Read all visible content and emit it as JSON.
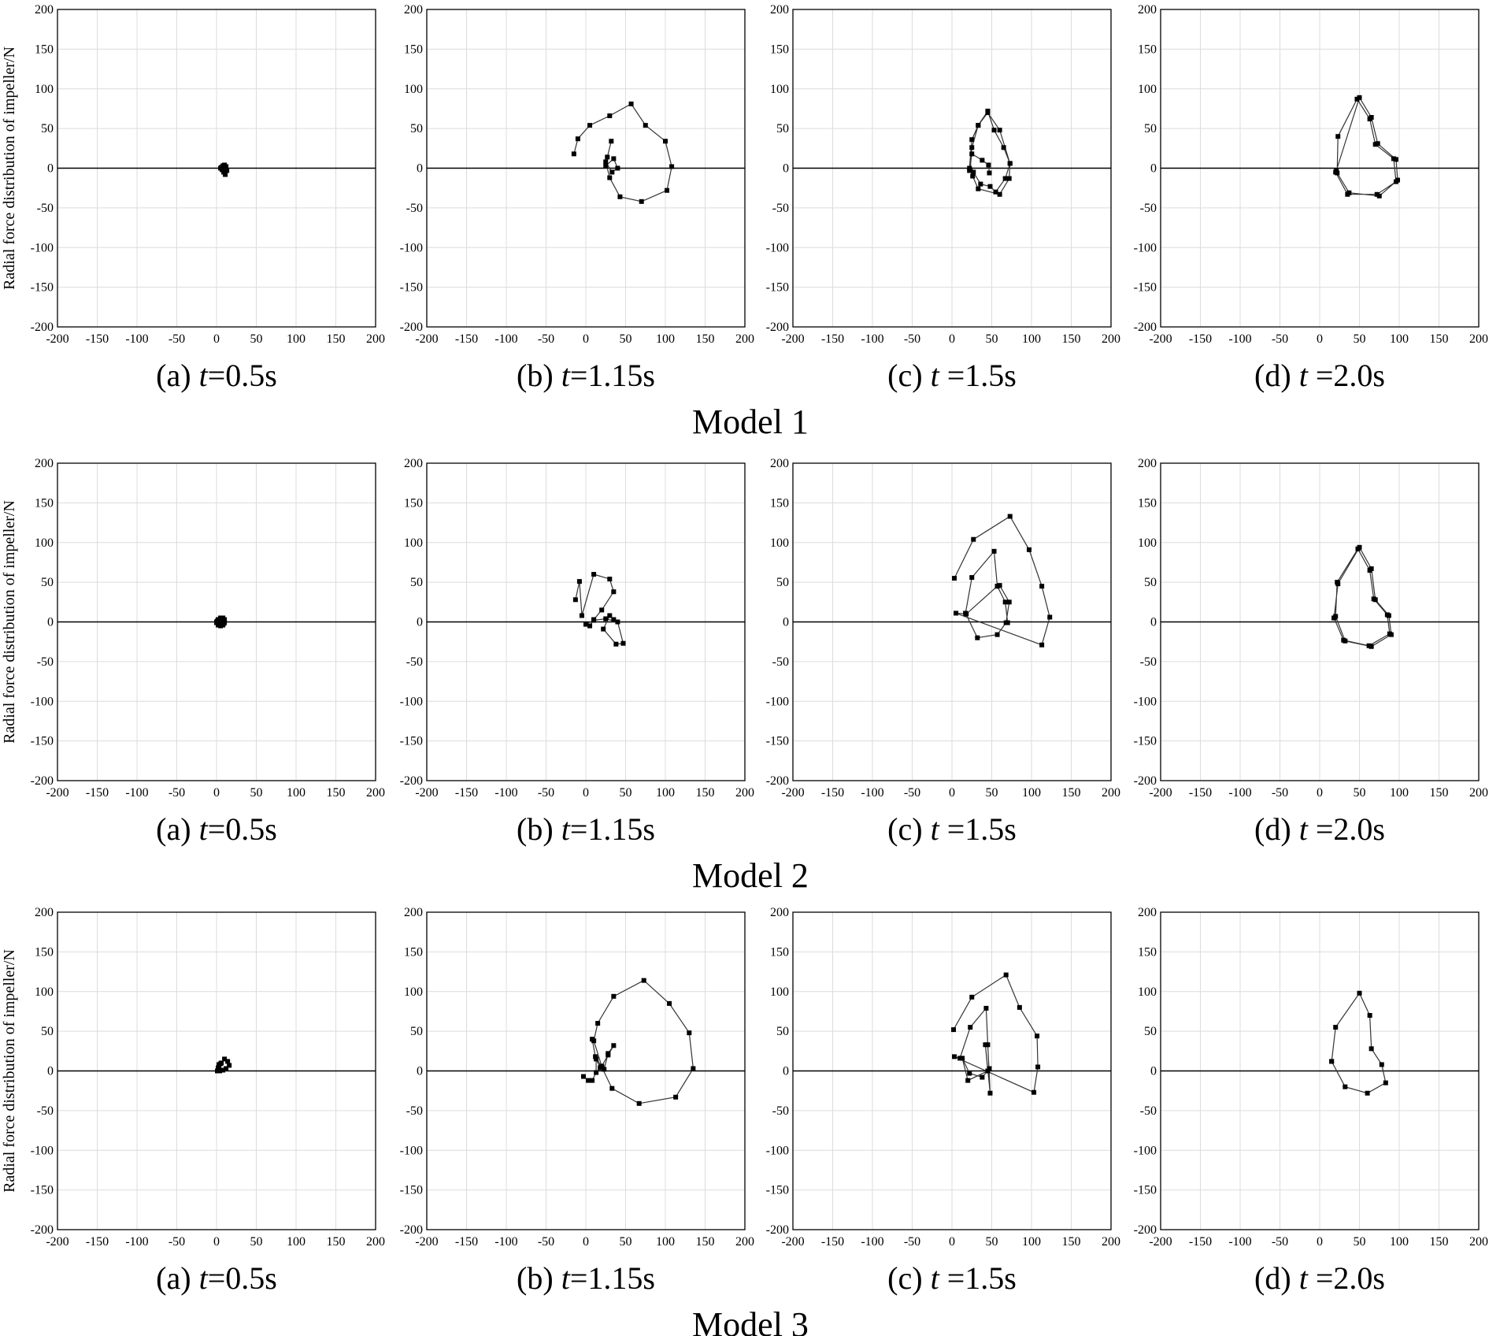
{
  "figure": {
    "ylabel": "Radial force distribution of impeller/N",
    "xlim": [
      -200,
      200
    ],
    "ylim": [
      -200,
      200
    ],
    "ticks": [
      -200,
      -150,
      -100,
      -50,
      0,
      50,
      100,
      150,
      200
    ],
    "grid": true,
    "rows": [
      {
        "label": "Model 1"
      },
      {
        "label": "Model 2"
      },
      {
        "label": "Model 3"
      }
    ],
    "captions": [
      {
        "pre": "(a) ",
        "t": "t",
        "post": "=0.5s"
      },
      {
        "pre": "(b) ",
        "t": "t",
        "post": "=1.15s"
      },
      {
        "pre": "(c) ",
        "t": "t",
        "post": " =1.5s"
      },
      {
        "pre": "(d) ",
        "t": "t",
        "post": " =2.0s"
      }
    ]
  },
  "chart_data": [
    {
      "type": "line",
      "model": "Model 1",
      "panel": "(a)",
      "time": "0.5s",
      "x": [
        5,
        8,
        10,
        12,
        13,
        11,
        9,
        7,
        6
      ],
      "y": [
        0,
        3,
        4,
        2,
        -3,
        -8,
        -5,
        -2,
        1
      ]
    },
    {
      "type": "line",
      "model": "Model 1",
      "panel": "(b)",
      "time": "1.15s",
      "x": [
        -15,
        -10,
        5,
        30,
        57,
        75,
        100,
        108,
        102,
        70,
        43,
        30,
        25,
        33,
        40,
        35,
        25,
        27,
        32
      ],
      "y": [
        18,
        37,
        54,
        66,
        81,
        54,
        34,
        2,
        -28,
        -42,
        -36,
        -12,
        8,
        -5,
        0,
        12,
        3,
        14,
        34
      ]
    },
    {
      "type": "line",
      "model": "Model 1",
      "panel": "(c)",
      "time": "1.5s",
      "x": [
        22,
        25,
        33,
        45,
        53,
        65,
        73,
        72,
        60,
        33,
        26,
        23,
        25,
        33,
        45,
        60,
        73,
        67,
        55,
        48,
        36,
        27,
        22,
        25,
        38,
        46,
        47
      ],
      "y": [
        0,
        36,
        54,
        72,
        48,
        26,
        6,
        -13,
        -33,
        -26,
        -10,
        -2,
        26,
        54,
        70,
        48,
        6,
        -13,
        -30,
        -23,
        -20,
        -5,
        -3,
        18,
        10,
        4,
        -6
      ]
    },
    {
      "type": "line",
      "model": "Model 1",
      "panel": "(d)",
      "time": "2.0s",
      "x": [
        21,
        50,
        65,
        73,
        96,
        98,
        75,
        37,
        22,
        23,
        47,
        63,
        70,
        93,
        96,
        72,
        35,
        20
      ],
      "y": [
        -3,
        89,
        64,
        31,
        11,
        -15,
        -35,
        -31,
        -6,
        40,
        87,
        62,
        30,
        12,
        -17,
        -33,
        -33,
        -5
      ]
    },
    {
      "type": "line",
      "model": "Model 2",
      "panel": "(a)",
      "time": "0.5s",
      "x": [
        0,
        2,
        5,
        8,
        10,
        10,
        8,
        5,
        2,
        0,
        1,
        4,
        7,
        9,
        9,
        7,
        4,
        2
      ],
      "y": [
        0,
        3,
        5,
        5,
        3,
        -1,
        -4,
        -5,
        -4,
        -1,
        1,
        3,
        4,
        2,
        -2,
        -4,
        -3,
        -1
      ]
    },
    {
      "type": "line",
      "model": "Model 2",
      "panel": "(b)",
      "time": "1.15s",
      "x": [
        -13,
        -8,
        -5,
        10,
        30,
        35,
        20,
        10,
        5,
        0,
        10,
        25,
        40,
        47,
        38,
        22,
        30,
        35
      ],
      "y": [
        28,
        51,
        8,
        60,
        54,
        38,
        15,
        3,
        -5,
        -3,
        2,
        4,
        0,
        -27,
        -28,
        -9,
        8,
        3
      ]
    },
    {
      "type": "line",
      "model": "Model 2",
      "panel": "(c)",
      "time": "1.5s",
      "x": [
        3,
        27,
        73,
        97,
        113,
        123,
        113,
        5,
        18,
        57,
        60,
        72,
        68,
        57,
        32,
        17,
        25,
        53,
        57,
        67,
        70
      ],
      "y": [
        55,
        104,
        133,
        91,
        45,
        6,
        -29,
        11,
        10,
        45,
        46,
        25,
        -1,
        -16,
        -20,
        11,
        56,
        89,
        45,
        25,
        -1
      ]
    },
    {
      "type": "line",
      "model": "Model 2",
      "panel": "(d)",
      "time": "2.0s",
      "x": [
        18,
        23,
        50,
        65,
        70,
        87,
        90,
        65,
        32,
        20,
        22,
        48,
        63,
        68,
        85,
        88,
        62,
        30,
        18
      ],
      "y": [
        5,
        48,
        94,
        67,
        28,
        8,
        -16,
        -31,
        -24,
        7,
        50,
        92,
        65,
        29,
        9,
        -15,
        -30,
        -23,
        5
      ]
    },
    {
      "type": "line",
      "model": "Model 3",
      "panel": "(a)",
      "time": "0.5s",
      "x": [
        1,
        3,
        6,
        10,
        14,
        16,
        12,
        8,
        4,
        2,
        3,
        5
      ],
      "y": [
        0,
        5,
        10,
        15,
        12,
        7,
        3,
        1,
        0,
        4,
        8,
        9
      ]
    },
    {
      "type": "line",
      "model": "Model 3",
      "panel": "(b)",
      "time": "1.15s",
      "x": [
        -3,
        3,
        8,
        13,
        13,
        18,
        23,
        28,
        35,
        28,
        20,
        10,
        15,
        35,
        73,
        105,
        130,
        135,
        113,
        67,
        33,
        20,
        12,
        8
      ],
      "y": [
        -7,
        -12,
        -12,
        -2,
        15,
        4,
        2,
        22,
        32,
        20,
        6,
        38,
        60,
        94,
        114,
        85,
        48,
        3,
        -33,
        -41,
        -22,
        5,
        18,
        40
      ]
    },
    {
      "type": "line",
      "model": "Model 3",
      "panel": "(c)",
      "time": "1.5s",
      "x": [
        2,
        25,
        68,
        85,
        107,
        108,
        103,
        3,
        10,
        23,
        43,
        45,
        48,
        42,
        45,
        20,
        13,
        22,
        38,
        47
      ],
      "y": [
        52,
        93,
        121,
        80,
        44,
        5,
        -27,
        18,
        16,
        55,
        79,
        33,
        -28,
        33,
        0,
        -12,
        16,
        -3,
        -8,
        3
      ]
    },
    {
      "type": "line",
      "model": "Model 3",
      "panel": "(d)",
      "time": "2.0s",
      "x": [
        15,
        20,
        50,
        63,
        65,
        78,
        83,
        60,
        32,
        15
      ],
      "y": [
        12,
        55,
        98,
        70,
        28,
        8,
        -15,
        -28,
        -20,
        12
      ]
    }
  ]
}
